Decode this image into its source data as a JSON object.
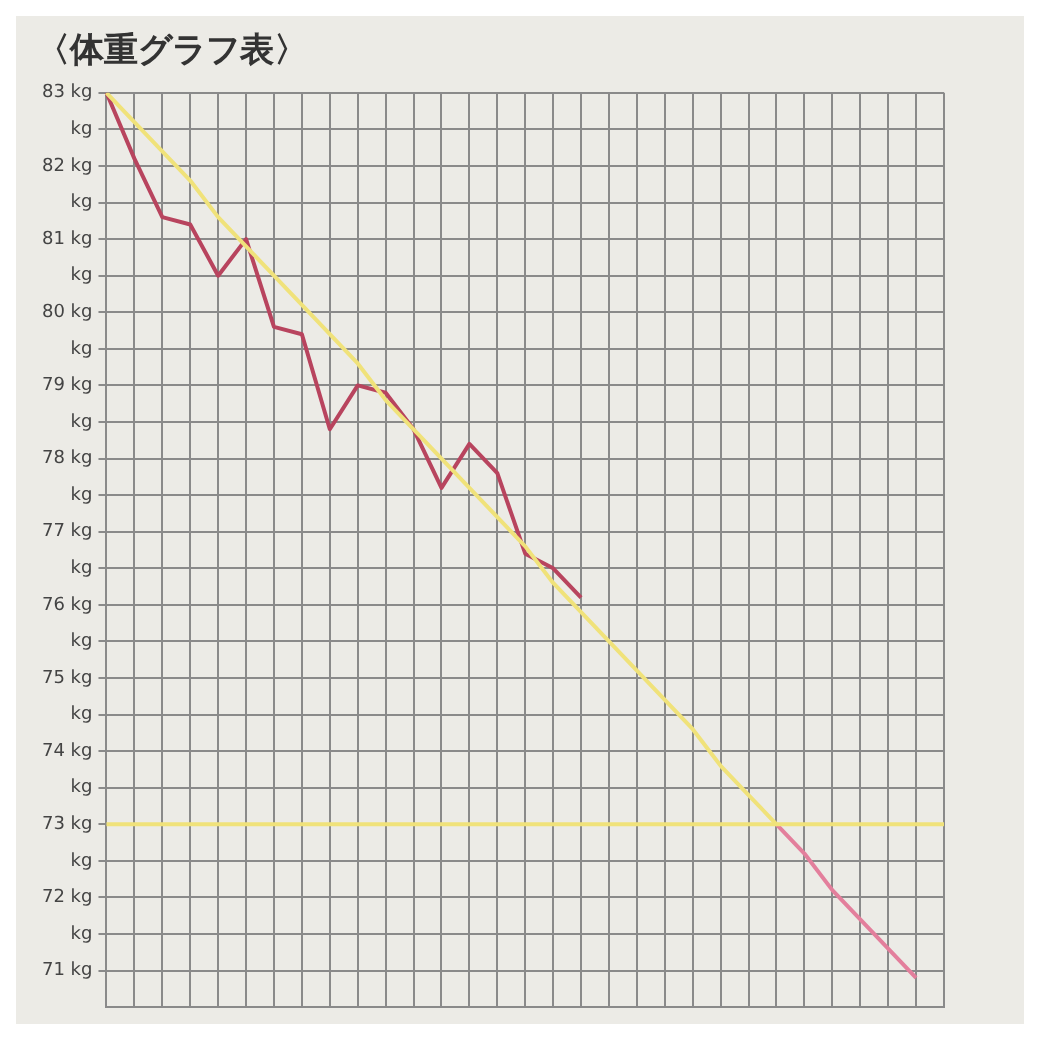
{
  "chart_data": {
    "type": "line",
    "title": "〈体重グラフ表〉",
    "categories": [
      null,
      null,
      null,
      null,
      null,
      null,
      null,
      null,
      null,
      null,
      null,
      null,
      null,
      null,
      null,
      null,
      null,
      null,
      null,
      null,
      null,
      null,
      null,
      null,
      null,
      null,
      null,
      null,
      null,
      null,
      null
    ],
    "series": [
      {
        "color": "#f0e27a",
        "values": [
          83,
          82.6,
          82.2,
          81.8,
          81.3,
          80.9,
          80.5,
          80.1,
          79.7,
          79.3,
          78.8,
          78.4,
          78.0,
          77.6,
          77.2,
          76.8,
          76.3,
          75.9,
          75.5,
          75.1,
          74.7,
          74.3,
          73.8,
          73.4,
          73.0,
          null,
          null,
          null,
          null,
          null,
          null
        ]
      },
      {
        "color": "#e37f9c",
        "values": [
          null,
          null,
          null,
          null,
          null,
          null,
          null,
          null,
          null,
          null,
          null,
          null,
          null,
          null,
          null,
          null,
          null,
          null,
          null,
          null,
          null,
          null,
          null,
          null,
          73.0,
          72.6,
          72.1,
          71.7,
          71.3,
          70.9,
          null
        ]
      },
      {
        "color": "#b8445e",
        "values": [
          83,
          82.1,
          81.3,
          81.2,
          80.5,
          81.0,
          79.8,
          79.7,
          78.4,
          79.0,
          78.9,
          78.4,
          77.6,
          78.2,
          77.8,
          76.7,
          76.5,
          76.1,
          null,
          null,
          null,
          null,
          null,
          null,
          null,
          null,
          null,
          null,
          null,
          null,
          null
        ]
      }
    ],
    "ylim": [
      70.5,
      83
    ],
    "yticks": [
      {
        "value": 71,
        "label": "71 kg"
      },
      {
        "value": 71.5,
        "label": "kg"
      },
      {
        "value": 72,
        "label": "72 kg"
      },
      {
        "value": 72.5,
        "label": "kg"
      },
      {
        "value": 73,
        "label": "73 kg"
      },
      {
        "value": 73.5,
        "label": "kg"
      },
      {
        "value": 74,
        "label": "74 kg"
      },
      {
        "value": 74.5,
        "label": "kg"
      },
      {
        "value": 75,
        "label": "75 kg"
      },
      {
        "value": 75.5,
        "label": "kg"
      },
      {
        "value": 76,
        "label": "76 kg"
      },
      {
        "value": 76.5,
        "label": "kg"
      },
      {
        "value": 77,
        "label": "77 kg"
      },
      {
        "value": 77.5,
        "label": "kg"
      },
      {
        "value": 78,
        "label": "78 kg"
      },
      {
        "value": 78.5,
        "label": "kg"
      },
      {
        "value": 79,
        "label": "79 kg"
      },
      {
        "value": 79.5,
        "label": "kg"
      },
      {
        "value": 80,
        "label": "80 kg"
      },
      {
        "value": 80.5,
        "label": "kg"
      },
      {
        "value": 81,
        "label": "81 kg"
      },
      {
        "value": 81.5,
        "label": "kg"
      },
      {
        "value": 82,
        "label": "82 kg"
      },
      {
        "value": 82.5,
        "label": "kg"
      },
      {
        "value": 83,
        "label": "83 kg"
      }
    ],
    "grid": true,
    "tick_labels": "y",
    "ref_lines": [
      {
        "axis": "y",
        "value": 73,
        "color": "#f0e27a"
      }
    ]
  }
}
